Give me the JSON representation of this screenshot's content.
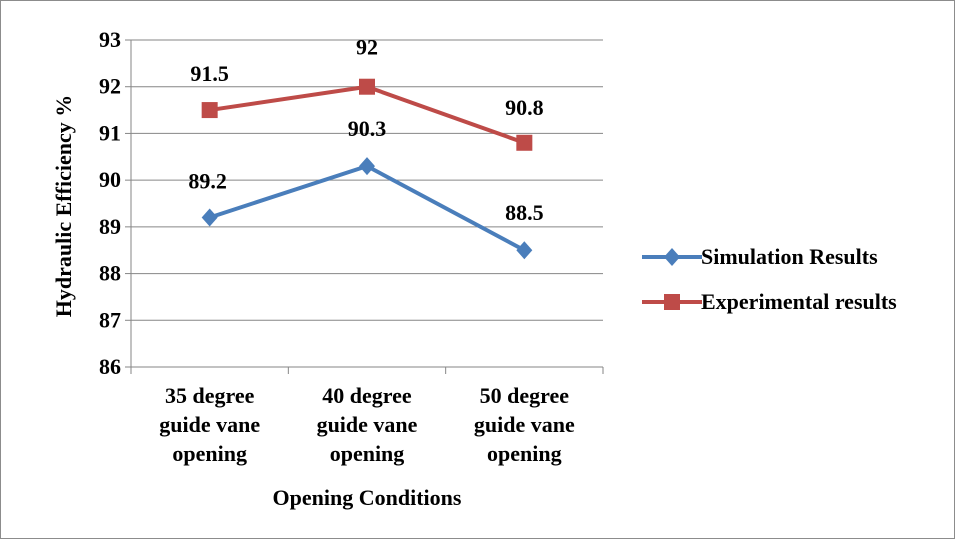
{
  "chart_data": {
    "type": "line",
    "title": "",
    "xlabel": "Opening Conditions",
    "ylabel": "Hydraulic Efficiency %",
    "categories": [
      [
        "35 degree",
        "guide vane",
        "opening"
      ],
      [
        "40 degree",
        "guide vane",
        "opening"
      ],
      [
        "50 degree",
        "guide vane",
        "opening"
      ]
    ],
    "ylim": [
      86,
      93
    ],
    "yticks": [
      86,
      87,
      88,
      89,
      90,
      91,
      92,
      93
    ],
    "grid": true,
    "legend_position": "right",
    "series": [
      {
        "name": "Simulation Results",
        "values": [
          89.2,
          90.3,
          88.5
        ],
        "labels": [
          "89.2",
          "90.3",
          "88.5"
        ],
        "color": "#4a7ebb",
        "marker": "diamond"
      },
      {
        "name": "Experimental results",
        "values": [
          91.5,
          92,
          90.8
        ],
        "labels": [
          "91.5",
          "92",
          "90.8"
        ],
        "color": "#be4b48",
        "marker": "square"
      }
    ]
  }
}
